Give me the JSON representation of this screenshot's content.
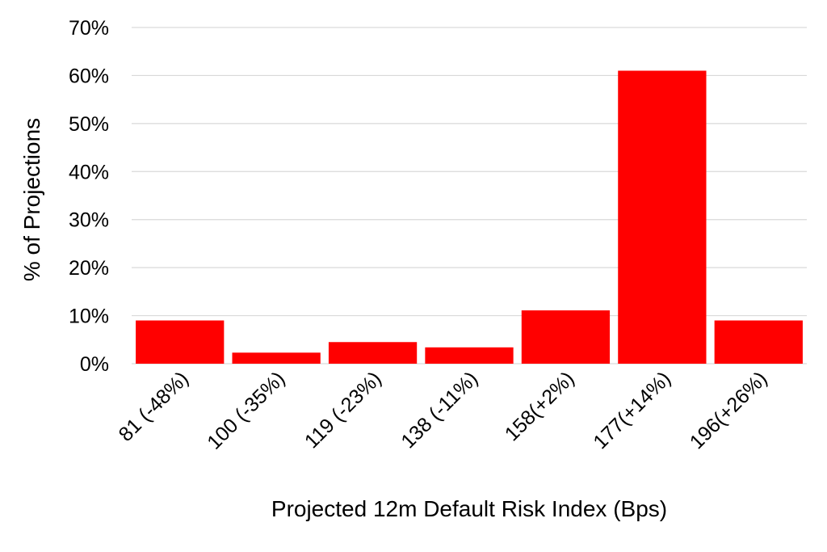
{
  "chart_data": {
    "type": "bar",
    "title": "",
    "xlabel": "Projected 12m Default Risk Index (Bps)",
    "ylabel": "% of Projections",
    "categories": [
      "81 (-48%)",
      "100 (-35%)",
      "119 (-23%)",
      "138 (-11%)",
      "158(+2%)",
      "177(+14%)",
      "196(+26%)"
    ],
    "values": [
      9,
      2.3,
      4.5,
      3.4,
      11.1,
      61,
      9
    ],
    "ylim": [
      0,
      70
    ],
    "yticks": [
      0,
      10,
      20,
      30,
      40,
      50,
      60,
      70
    ],
    "ytick_labels": [
      "0%",
      "10%",
      "20%",
      "30%",
      "40%",
      "50%",
      "60%",
      "70%"
    ],
    "grid": true,
    "legend": "none",
    "bar_color": "#ff0000"
  }
}
